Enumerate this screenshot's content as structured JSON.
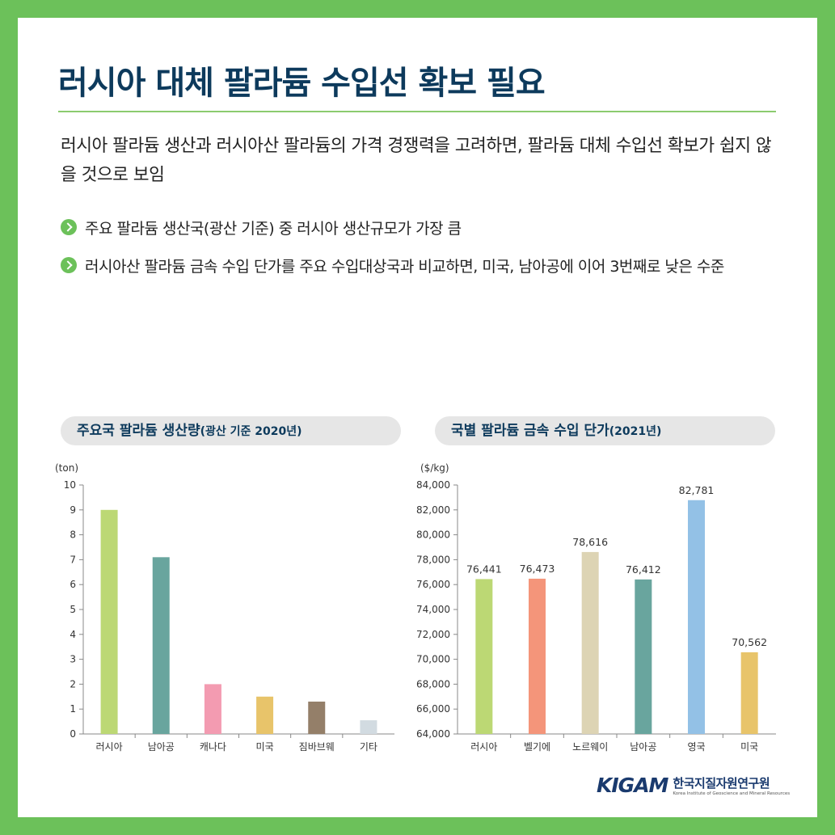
{
  "title": "러시아 대체 팔라듐 수입선 확보 필요",
  "summary": "러시아 팔라듐 생산과 러시아산 팔라듐의 가격 경쟁력을 고려하면, 팔라듐 대체 수입선 확보가 쉽지 않을 것으로 보임",
  "bullets": [
    "주요 팔라듐 생산국(광산 기준) 중 러시아 생산규모가 가장 큼",
    "러시아산 팔라듐 금속 수입 단가를 주요 수입대상국과 비교하면, 미국, 남아공에 이어 3번째로 낮은 수준"
  ],
  "logo": {
    "mark": "KIGAM",
    "name": "한국지질자원연구원",
    "english": "Korea Institute of Geoscience and Mineral Resources"
  },
  "colors": {
    "frame": "#6cc15a",
    "title": "#0d3a5c",
    "rule": "#8ccb6f",
    "pill": "#e6e6e6"
  },
  "chart_data": [
    {
      "type": "bar",
      "title": "주요국 팔라듐 생산량",
      "subtitle": "(광산 기준 2020년)",
      "unit": "(ton)",
      "categories": [
        "러시아",
        "남아공",
        "캐나다",
        "미국",
        "짐바브웨",
        "기타"
      ],
      "values": [
        9.0,
        7.1,
        2.0,
        1.5,
        1.3,
        0.55
      ],
      "colors": [
        "#bcd874",
        "#69a59e",
        "#f39bb1",
        "#e8c46a",
        "#947f69",
        "#d2dbe1"
      ],
      "yticks": [
        "0",
        "1",
        "2",
        "3",
        "4",
        "5",
        "6",
        "7",
        "8",
        "9",
        "10"
      ],
      "ylim": [
        0,
        10
      ],
      "grid": false,
      "data_labels": false
    },
    {
      "type": "bar",
      "title": "국별 팔라듐 금속 수입 단가",
      "subtitle": "(2021년)",
      "unit": "($/kg)",
      "categories": [
        "러시아",
        "벨기에",
        "노르웨이",
        "남아공",
        "영국",
        "미국"
      ],
      "values": [
        76441,
        76473,
        78616,
        76412,
        82781,
        70562
      ],
      "labels": [
        "76,441",
        "76,473",
        "78,616",
        "76,412",
        "82,781",
        "70,562"
      ],
      "colors": [
        "#bcd874",
        "#f4957a",
        "#ddd4b4",
        "#69a59e",
        "#93c1e6",
        "#e8c46a"
      ],
      "yticks": [
        "64,000",
        "66,000",
        "68,000",
        "70,000",
        "72,000",
        "74,000",
        "76,000",
        "78,000",
        "80,000",
        "82,000",
        "84,000"
      ],
      "ylim": [
        64000,
        84000
      ],
      "grid": false,
      "data_labels": true
    }
  ]
}
